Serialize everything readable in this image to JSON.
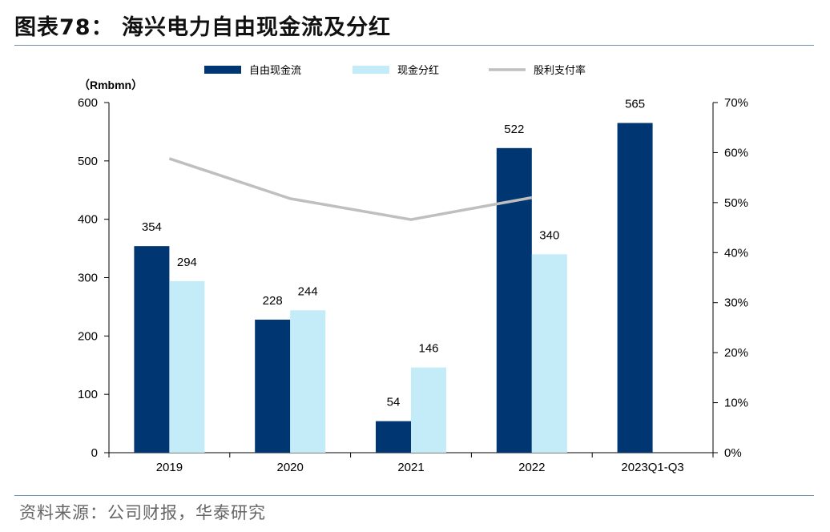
{
  "header": {
    "title": "图表78：  海兴电力自由现金流及分红"
  },
  "footer": {
    "source": "资料来源：公司财报，华泰研究"
  },
  "chart_data": {
    "type": "bar",
    "categories": [
      "2019",
      "2020",
      "2021",
      "2022",
      "2023Q1-Q3"
    ],
    "left_axis_unit": "（Rmbmn）",
    "ylim": [
      0,
      600
    ],
    "yticks": [
      0,
      100,
      200,
      300,
      400,
      500,
      600
    ],
    "y2lim": [
      0,
      0.7
    ],
    "y2ticks": [
      "0%",
      "10%",
      "20%",
      "30%",
      "40%",
      "50%",
      "60%",
      "70%"
    ],
    "legend_position": "top",
    "series": [
      {
        "name": "自由现金流",
        "kind": "bar",
        "color": "#003671",
        "values": [
          354,
          228,
          54,
          522,
          565
        ],
        "labels": [
          "354",
          "228",
          "54",
          "522",
          "565"
        ]
      },
      {
        "name": "现金分红",
        "kind": "bar",
        "color": "#c4ebf8",
        "values": [
          294,
          244,
          146,
          340,
          null
        ],
        "labels": [
          "294",
          "244",
          "146",
          "340",
          ""
        ]
      },
      {
        "name": "股利支付率",
        "kind": "line",
        "axis": "right",
        "color": "#bfbfbf",
        "values": [
          0.588,
          0.508,
          0.466,
          0.51,
          null
        ]
      }
    ]
  }
}
